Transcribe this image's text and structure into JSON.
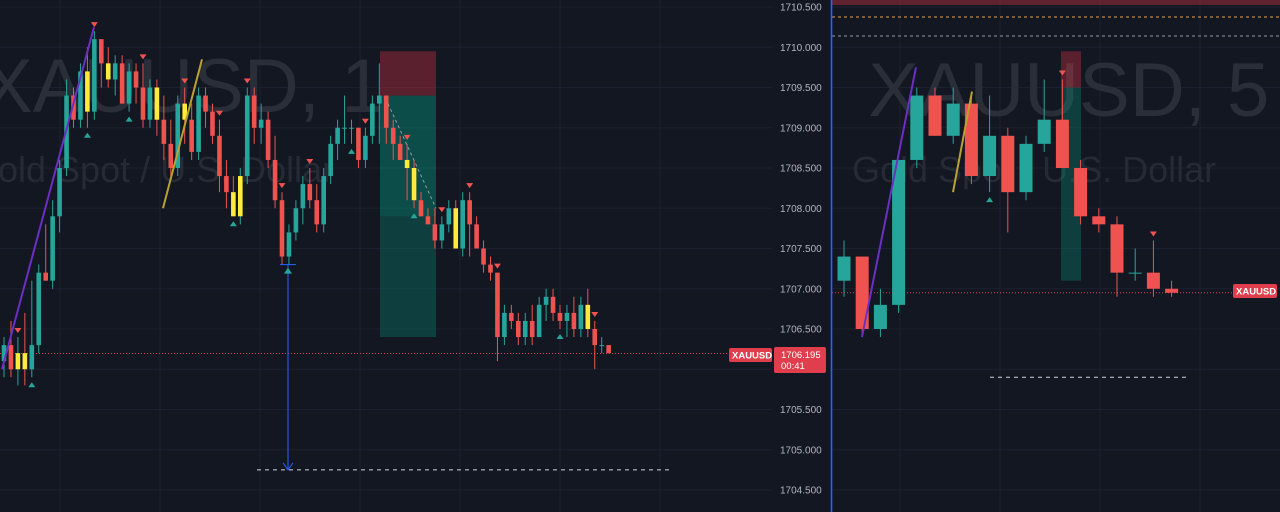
{
  "colors": {
    "background": "#131722",
    "grid": "#1c2030",
    "up": "#26a69a",
    "down": "#ef5350",
    "highlight": "#ffeb3b",
    "trend_purple": "#6b2fc4",
    "trend_gold": "#b8a232",
    "price_line": "#e03e4c",
    "divider": "#2962ff",
    "axis_text": "#b2b5be"
  },
  "price_axis": {
    "ticks": [
      "1710.500",
      "1710.000",
      "1709.500",
      "1709.000",
      "1708.500",
      "1708.000",
      "1707.500",
      "1707.000",
      "1706.500",
      "1706.000",
      "1705.500",
      "1705.000",
      "1704.500"
    ]
  },
  "left_panel": {
    "watermark": {
      "symbol": "XAUUSD, 1",
      "description": "Gold Spot / U.S. Dollar"
    },
    "price_tag": {
      "symbol": "XAUUSD",
      "price": "1706.195",
      "countdown": "00:41"
    }
  },
  "right_panel": {
    "watermark": {
      "symbol": "XAUUSD, 5",
      "description": "Gold Spot / U.S. Dollar"
    },
    "price_tag": {
      "symbol": "XAUUSD"
    }
  },
  "chart_data": [
    {
      "type": "candlestick",
      "symbol": "XAUUSD",
      "timeframe": "1",
      "current_price": 1706.195,
      "ylim": [
        1704.4,
        1710.6
      ],
      "grid": true,
      "candles": [
        {
          "o": 1706.1,
          "h": 1706.4,
          "l": 1705.9,
          "c": 1706.3
        },
        {
          "o": 1706.3,
          "h": 1706.6,
          "l": 1705.9,
          "c": 1706.0
        },
        {
          "o": 1706.0,
          "h": 1706.4,
          "l": 1705.8,
          "c": 1706.2,
          "hl": true
        },
        {
          "o": 1706.2,
          "h": 1706.7,
          "l": 1705.8,
          "c": 1706.0,
          "hl": true
        },
        {
          "o": 1706.0,
          "h": 1707.1,
          "l": 1705.9,
          "c": 1706.3
        },
        {
          "o": 1706.3,
          "h": 1707.3,
          "l": 1706.2,
          "c": 1707.2
        },
        {
          "o": 1707.2,
          "h": 1707.8,
          "l": 1707.1,
          "c": 1707.1
        },
        {
          "o": 1707.1,
          "h": 1708.1,
          "l": 1707.0,
          "c": 1707.9
        },
        {
          "o": 1707.9,
          "h": 1708.6,
          "l": 1707.7,
          "c": 1708.5
        },
        {
          "o": 1708.5,
          "h": 1709.6,
          "l": 1708.4,
          "c": 1709.4
        },
        {
          "o": 1709.4,
          "h": 1709.5,
          "l": 1709.0,
          "c": 1709.1
        },
        {
          "o": 1709.1,
          "h": 1709.8,
          "l": 1709.0,
          "c": 1709.7
        },
        {
          "o": 1709.7,
          "h": 1710.0,
          "l": 1709.0,
          "c": 1709.2,
          "hl": true
        },
        {
          "o": 1709.2,
          "h": 1710.2,
          "l": 1709.1,
          "c": 1710.1
        },
        {
          "o": 1710.1,
          "h": 1710.1,
          "l": 1709.5,
          "c": 1709.8
        },
        {
          "o": 1709.8,
          "h": 1710.0,
          "l": 1709.5,
          "c": 1709.6,
          "hl": true
        },
        {
          "o": 1709.6,
          "h": 1709.9,
          "l": 1709.4,
          "c": 1709.8
        },
        {
          "o": 1709.8,
          "h": 1709.9,
          "l": 1709.3,
          "c": 1709.3
        },
        {
          "o": 1709.3,
          "h": 1709.8,
          "l": 1709.2,
          "c": 1709.7
        },
        {
          "o": 1709.7,
          "h": 1709.8,
          "l": 1709.3,
          "c": 1709.5
        },
        {
          "o": 1709.5,
          "h": 1709.8,
          "l": 1709.0,
          "c": 1709.1
        },
        {
          "o": 1709.1,
          "h": 1709.6,
          "l": 1709.0,
          "c": 1709.5
        },
        {
          "o": 1709.5,
          "h": 1709.6,
          "l": 1708.9,
          "c": 1709.1,
          "hl": true
        },
        {
          "o": 1709.1,
          "h": 1709.4,
          "l": 1708.6,
          "c": 1708.8
        },
        {
          "o": 1708.8,
          "h": 1709.1,
          "l": 1708.4,
          "c": 1708.5
        },
        {
          "o": 1708.5,
          "h": 1709.4,
          "l": 1708.4,
          "c": 1709.3
        },
        {
          "o": 1709.3,
          "h": 1709.5,
          "l": 1708.8,
          "c": 1709.1,
          "hl": true
        },
        {
          "o": 1709.1,
          "h": 1709.3,
          "l": 1708.6,
          "c": 1708.7
        },
        {
          "o": 1708.7,
          "h": 1709.5,
          "l": 1708.6,
          "c": 1709.4
        },
        {
          "o": 1709.4,
          "h": 1709.5,
          "l": 1709.0,
          "c": 1709.2
        },
        {
          "o": 1709.2,
          "h": 1709.3,
          "l": 1708.8,
          "c": 1708.9
        },
        {
          "o": 1708.9,
          "h": 1709.1,
          "l": 1708.2,
          "c": 1708.4
        },
        {
          "o": 1708.4,
          "h": 1708.6,
          "l": 1708.0,
          "c": 1708.2
        },
        {
          "o": 1708.2,
          "h": 1708.4,
          "l": 1707.9,
          "c": 1707.9,
          "hl": true
        },
        {
          "o": 1707.9,
          "h": 1708.5,
          "l": 1707.8,
          "c": 1708.4,
          "hl": true
        },
        {
          "o": 1708.4,
          "h": 1709.5,
          "l": 1708.3,
          "c": 1709.4
        },
        {
          "o": 1709.4,
          "h": 1709.5,
          "l": 1708.8,
          "c": 1709.0
        },
        {
          "o": 1709.0,
          "h": 1709.3,
          "l": 1708.8,
          "c": 1709.1
        },
        {
          "o": 1709.1,
          "h": 1709.2,
          "l": 1708.5,
          "c": 1708.6
        },
        {
          "o": 1708.6,
          "h": 1708.9,
          "l": 1708.0,
          "c": 1708.1
        },
        {
          "o": 1708.1,
          "h": 1708.2,
          "l": 1707.3,
          "c": 1707.4
        },
        {
          "o": 1707.4,
          "h": 1707.8,
          "l": 1707.3,
          "c": 1707.7
        },
        {
          "o": 1707.7,
          "h": 1708.1,
          "l": 1707.6,
          "c": 1708.0
        },
        {
          "o": 1708.0,
          "h": 1708.4,
          "l": 1707.8,
          "c": 1708.3
        },
        {
          "o": 1708.3,
          "h": 1708.5,
          "l": 1708.0,
          "c": 1708.1
        },
        {
          "o": 1708.1,
          "h": 1708.3,
          "l": 1707.7,
          "c": 1707.8
        },
        {
          "o": 1707.8,
          "h": 1708.5,
          "l": 1707.7,
          "c": 1708.4
        },
        {
          "o": 1708.4,
          "h": 1708.9,
          "l": 1708.3,
          "c": 1708.8
        },
        {
          "o": 1708.8,
          "h": 1709.1,
          "l": 1708.6,
          "c": 1709.0
        },
        {
          "o": 1709.0,
          "h": 1709.4,
          "l": 1708.8,
          "c": 1709.0
        },
        {
          "o": 1709.0,
          "h": 1709.1,
          "l": 1708.8,
          "c": 1709.0
        },
        {
          "o": 1709.0,
          "h": 1709.0,
          "l": 1708.5,
          "c": 1708.6
        },
        {
          "o": 1708.6,
          "h": 1709.0,
          "l": 1708.5,
          "c": 1708.9
        },
        {
          "o": 1708.9,
          "h": 1709.4,
          "l": 1708.8,
          "c": 1709.3
        },
        {
          "o": 1709.3,
          "h": 1709.8,
          "l": 1708.8,
          "c": 1709.4
        },
        {
          "o": 1709.4,
          "h": 1709.4,
          "l": 1708.8,
          "c": 1709.0
        },
        {
          "o": 1709.0,
          "h": 1709.1,
          "l": 1708.6,
          "c": 1708.8
        },
        {
          "o": 1708.8,
          "h": 1708.9,
          "l": 1708.6,
          "c": 1708.6
        },
        {
          "o": 1708.6,
          "h": 1708.8,
          "l": 1708.1,
          "c": 1708.5,
          "hl": true
        },
        {
          "o": 1708.5,
          "h": 1708.6,
          "l": 1708.0,
          "c": 1708.1,
          "hl": true
        },
        {
          "o": 1708.1,
          "h": 1708.2,
          "l": 1707.9,
          "c": 1707.9
        },
        {
          "o": 1707.9,
          "h": 1708.0,
          "l": 1707.8,
          "c": 1707.8
        },
        {
          "o": 1707.8,
          "h": 1708.0,
          "l": 1707.5,
          "c": 1707.6
        },
        {
          "o": 1707.6,
          "h": 1707.9,
          "l": 1707.5,
          "c": 1707.8
        },
        {
          "o": 1707.8,
          "h": 1708.1,
          "l": 1707.7,
          "c": 1708.0
        },
        {
          "o": 1708.0,
          "h": 1708.1,
          "l": 1707.5,
          "c": 1707.5,
          "hl": true
        },
        {
          "o": 1707.5,
          "h": 1708.2,
          "l": 1707.4,
          "c": 1708.1
        },
        {
          "o": 1708.1,
          "h": 1708.2,
          "l": 1707.4,
          "c": 1707.8
        },
        {
          "o": 1707.8,
          "h": 1707.9,
          "l": 1707.5,
          "c": 1707.5
        },
        {
          "o": 1707.5,
          "h": 1707.6,
          "l": 1707.2,
          "c": 1707.3
        },
        {
          "o": 1707.3,
          "h": 1707.4,
          "l": 1707.1,
          "c": 1707.2
        },
        {
          "o": 1707.2,
          "h": 1707.2,
          "l": 1706.1,
          "c": 1706.4
        },
        {
          "o": 1706.4,
          "h": 1706.8,
          "l": 1706.3,
          "c": 1706.7
        },
        {
          "o": 1706.7,
          "h": 1706.8,
          "l": 1706.5,
          "c": 1706.6
        },
        {
          "o": 1706.6,
          "h": 1706.7,
          "l": 1706.3,
          "c": 1706.4
        },
        {
          "o": 1706.4,
          "h": 1706.7,
          "l": 1706.3,
          "c": 1706.6
        },
        {
          "o": 1706.6,
          "h": 1706.8,
          "l": 1706.3,
          "c": 1706.4
        },
        {
          "o": 1706.4,
          "h": 1706.9,
          "l": 1706.4,
          "c": 1706.8
        },
        {
          "o": 1706.8,
          "h": 1707.0,
          "l": 1706.6,
          "c": 1706.9
        },
        {
          "o": 1706.9,
          "h": 1707.0,
          "l": 1706.6,
          "c": 1706.7
        },
        {
          "o": 1706.7,
          "h": 1706.8,
          "l": 1706.5,
          "c": 1706.6
        },
        {
          "o": 1706.6,
          "h": 1706.8,
          "l": 1706.4,
          "c": 1706.7
        },
        {
          "o": 1706.7,
          "h": 1706.9,
          "l": 1706.4,
          "c": 1706.5
        },
        {
          "o": 1706.5,
          "h": 1706.9,
          "l": 1706.4,
          "c": 1706.8
        },
        {
          "o": 1706.8,
          "h": 1707.0,
          "l": 1706.4,
          "c": 1706.5,
          "hl": true
        },
        {
          "o": 1706.5,
          "h": 1706.6,
          "l": 1706.0,
          "c": 1706.3
        },
        {
          "o": 1706.3,
          "h": 1706.4,
          "l": 1706.2,
          "c": 1706.3
        },
        {
          "o": 1706.3,
          "h": 1706.3,
          "l": 1706.2,
          "c": 1706.2
        }
      ],
      "drawings": {
        "position_box": {
          "entry": 1709.4,
          "target": 1706.4,
          "stop": 1709.95
        },
        "measure_arrow": {
          "from": 1707.3,
          "to": 1704.75
        },
        "dashed_level": 1704.75
      }
    },
    {
      "type": "candlestick",
      "symbol": "XAUUSD",
      "timeframe": "5",
      "ylim": [
        1704.4,
        1710.6
      ],
      "grid": true,
      "candles": [
        {
          "o": 1707.1,
          "h": 1707.6,
          "l": 1706.9,
          "c": 1707.4
        },
        {
          "o": 1707.4,
          "h": 1707.4,
          "l": 1706.4,
          "c": 1706.5
        },
        {
          "o": 1706.5,
          "h": 1707.0,
          "l": 1706.4,
          "c": 1706.8
        },
        {
          "o": 1706.8,
          "h": 1708.6,
          "l": 1706.7,
          "c": 1708.6
        },
        {
          "o": 1708.6,
          "h": 1709.5,
          "l": 1708.5,
          "c": 1709.4
        },
        {
          "o": 1709.4,
          "h": 1709.5,
          "l": 1708.9,
          "c": 1708.9
        },
        {
          "o": 1708.9,
          "h": 1709.5,
          "l": 1708.8,
          "c": 1709.3
        },
        {
          "o": 1709.3,
          "h": 1709.4,
          "l": 1708.3,
          "c": 1708.4
        },
        {
          "o": 1708.4,
          "h": 1709.4,
          "l": 1708.2,
          "c": 1708.9
        },
        {
          "o": 1708.9,
          "h": 1709.0,
          "l": 1707.7,
          "c": 1708.2
        },
        {
          "o": 1708.2,
          "h": 1708.9,
          "l": 1708.1,
          "c": 1708.8
        },
        {
          "o": 1708.8,
          "h": 1709.6,
          "l": 1708.7,
          "c": 1709.1
        },
        {
          "o": 1709.1,
          "h": 1709.6,
          "l": 1708.5,
          "c": 1708.5
        },
        {
          "o": 1708.5,
          "h": 1708.6,
          "l": 1707.8,
          "c": 1707.9
        },
        {
          "o": 1707.9,
          "h": 1708.0,
          "l": 1707.7,
          "c": 1707.8
        },
        {
          "o": 1707.8,
          "h": 1707.9,
          "l": 1706.9,
          "c": 1707.2
        },
        {
          "o": 1707.2,
          "h": 1707.5,
          "l": 1707.1,
          "c": 1707.2
        },
        {
          "o": 1707.2,
          "h": 1707.6,
          "l": 1706.9,
          "c": 1707.0
        },
        {
          "o": 1707.0,
          "h": 1707.1,
          "l": 1706.9,
          "c": 1706.95
        }
      ],
      "drawings": {
        "dashed_level": 1705.9,
        "orange_level": 1710.35,
        "grey_level": 1710.15
      }
    }
  ]
}
